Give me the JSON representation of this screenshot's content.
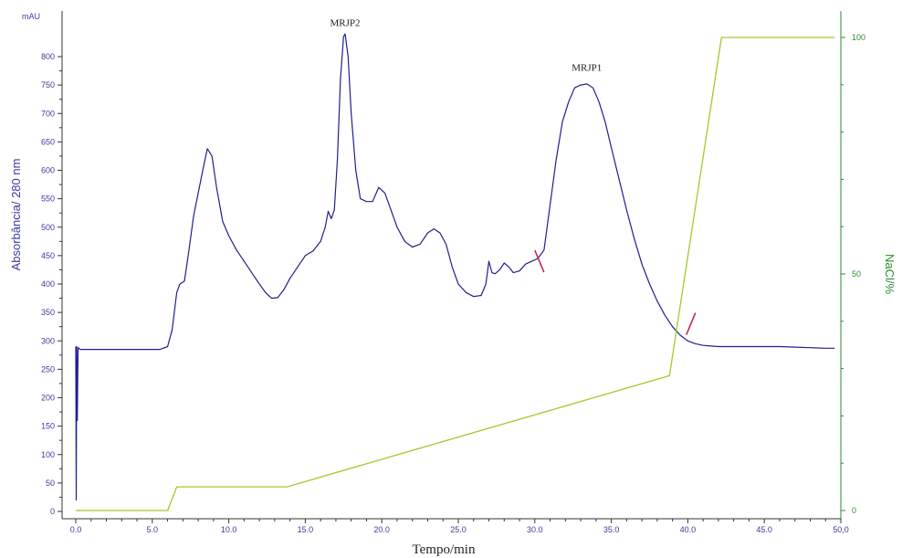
{
  "chart_data": {
    "type": "line",
    "xlabel": "Tempo/min",
    "ylabel_left": "Absorbância/ 280 nm",
    "ylabel_right": "NaCl/%",
    "yunit_left": "mAU",
    "xlim": [
      0,
      50
    ],
    "ylim_left": [
      0,
      800
    ],
    "ylim_right": [
      0,
      100
    ],
    "x_ticks": [
      "0.0",
      "5.0",
      "10.0",
      "15.0",
      "20.0",
      "25.0",
      "30.0",
      "35.0",
      "40.0",
      "45.0",
      "50,0"
    ],
    "y_left_ticks": [
      "0",
      "50",
      "100",
      "150",
      "200",
      "250",
      "300",
      "350",
      "400",
      "450",
      "500",
      "550",
      "600",
      "650",
      "700",
      "750",
      "800"
    ],
    "y_right_ticks": [
      "0",
      "50",
      "100"
    ],
    "colors": {
      "absorbance": "#1f1f8f",
      "nacl": "#9ecb2a",
      "axis_right": "#2e8b2e",
      "marker": "#c0204a",
      "axis_left_text": "#3b3b9e"
    },
    "annotations": [
      {
        "text": "MRJP2",
        "x": 17.6,
        "y": 838
      },
      {
        "text": "MRJP1",
        "x": 33.4,
        "y": 759
      }
    ],
    "fraction_markers": [
      {
        "x": 30.3,
        "y": 440
      },
      {
        "x": 40.2,
        "y": 330
      }
    ],
    "series": [
      {
        "name": "Absorbância",
        "axis": "left",
        "x": [
          0,
          0.03,
          0.06,
          0.1,
          0.15,
          0.3,
          3,
          5.5,
          6.0,
          6.3,
          6.6,
          6.8,
          7.1,
          7.4,
          7.7,
          8.0,
          8.3,
          8.6,
          8.9,
          9.2,
          9.6,
          10.0,
          10.5,
          11.0,
          11.5,
          12.0,
          12.4,
          12.8,
          13.2,
          13.6,
          14.0,
          14.5,
          15.0,
          15.5,
          16.0,
          16.3,
          16.5,
          16.7,
          16.9,
          17.1,
          17.3,
          17.5,
          17.6,
          17.8,
          18.0,
          18.3,
          18.6,
          19.0,
          19.4,
          19.8,
          20.2,
          20.6,
          21.0,
          21.5,
          22.0,
          22.5,
          23.0,
          23.4,
          23.8,
          24.2,
          24.6,
          25.0,
          25.5,
          26.0,
          26.5,
          26.8,
          27.0,
          27.2,
          27.4,
          27.7,
          28.0,
          28.3,
          28.6,
          29.0,
          29.4,
          29.8,
          30.2,
          30.6,
          31.0,
          31.4,
          31.8,
          32.2,
          32.6,
          33.0,
          33.4,
          33.8,
          34.2,
          34.6,
          35.0,
          35.5,
          36.0,
          36.5,
          37.0,
          37.5,
          38.0,
          38.5,
          39.0,
          39.5,
          40.0,
          40.5,
          41.0,
          41.5,
          42.0,
          43.0,
          44.0,
          45.0,
          46.0,
          47.0,
          48.0,
          49.0,
          49.6
        ],
        "y": [
          290,
          20,
          290,
          160,
          288,
          285,
          285,
          285,
          290,
          320,
          385,
          400,
          405,
          460,
          520,
          560,
          600,
          638,
          625,
          570,
          510,
          485,
          460,
          440,
          420,
          400,
          385,
          375,
          376,
          390,
          410,
          430,
          450,
          458,
          475,
          500,
          528,
          515,
          530,
          620,
          760,
          835,
          840,
          800,
          700,
          600,
          550,
          545,
          545,
          570,
          560,
          530,
          500,
          475,
          465,
          470,
          490,
          497,
          490,
          470,
          430,
          400,
          385,
          378,
          380,
          400,
          440,
          420,
          418,
          425,
          437,
          430,
          420,
          423,
          435,
          440,
          445,
          460,
          540,
          620,
          685,
          720,
          745,
          750,
          752,
          745,
          720,
          685,
          640,
          585,
          530,
          480,
          435,
          400,
          370,
          345,
          325,
          310,
          300,
          295,
          292,
          291,
          290,
          290,
          290,
          290,
          290,
          289,
          288,
          287,
          287
        ]
      },
      {
        "name": "NaCl",
        "axis": "right",
        "x": [
          0,
          6.0,
          6.6,
          13.8,
          38.8,
          42.2,
          49.6
        ],
        "y": [
          0,
          0,
          5,
          5,
          28.5,
          100,
          100
        ]
      }
    ]
  }
}
